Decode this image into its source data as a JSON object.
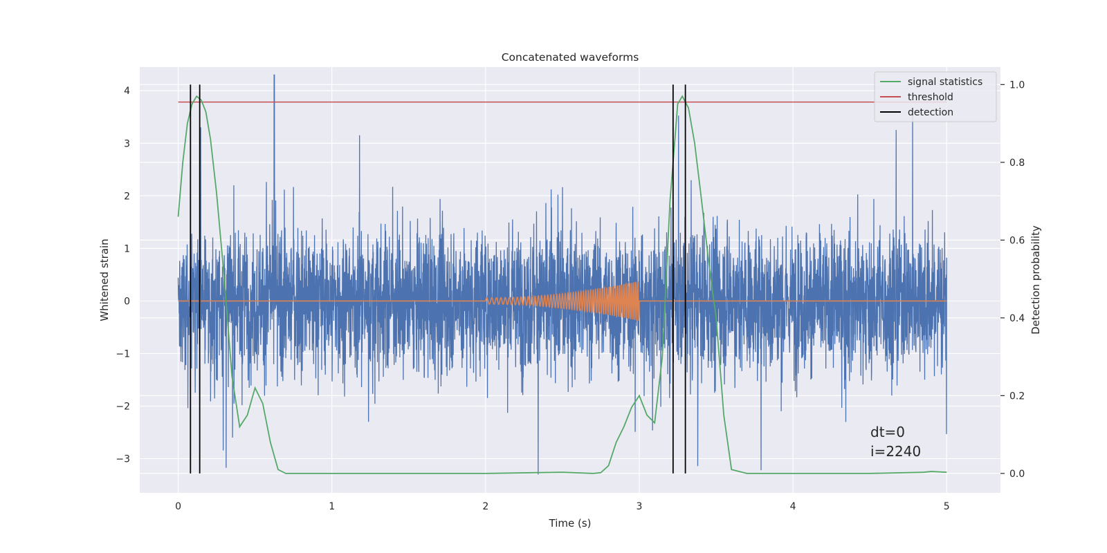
{
  "chart_data": {
    "type": "line",
    "title": "Concatenated waveforms",
    "xlabel": "Time (s)",
    "ylabel": "Whitened strain",
    "y2label": "Detection probability",
    "xlim": [
      -0.25,
      5.35
    ],
    "ylim": [
      -3.65,
      4.45
    ],
    "y2lim": [
      -0.05,
      1.045
    ],
    "x_ticks": [
      0,
      1,
      2,
      3,
      4,
      5
    ],
    "x_tick_labels": [
      "0",
      "1",
      "2",
      "3",
      "4",
      "5"
    ],
    "y_ticks": [
      4,
      3,
      2,
      1,
      0,
      -1,
      -2,
      -3
    ],
    "y_tick_labels": [
      "4",
      "3",
      "2",
      "1",
      "0",
      "−1",
      "−2",
      "−3"
    ],
    "y2_ticks": [
      1.0,
      0.8,
      0.6,
      0.4,
      0.2,
      0.0
    ],
    "y2_tick_labels": [
      "1.0",
      "0.8",
      "0.6",
      "0.4",
      "0.2",
      "0.0"
    ],
    "grid": true,
    "legend_position": "top-right",
    "colors": {
      "strain": "#4c72b0",
      "injected": "#dd8452",
      "signal_statistics": "#55a868",
      "threshold": "#c44e52",
      "detection": "#000000",
      "background": "#eaeaf2",
      "grid": "#ffffff"
    },
    "series": [
      {
        "name": "signal statistics",
        "axis": "right",
        "x": [
          0,
          0.03,
          0.06,
          0.09,
          0.12,
          0.15,
          0.18,
          0.21,
          0.25,
          0.3,
          0.35,
          0.4,
          0.45,
          0.5,
          0.55,
          0.6,
          0.65,
          0.7,
          1.0,
          2.0,
          2.5,
          2.7,
          2.75,
          2.8,
          2.85,
          2.9,
          2.95,
          3.0,
          3.05,
          3.1,
          3.15,
          3.2,
          3.25,
          3.28,
          3.32,
          3.36,
          3.4,
          3.45,
          3.5,
          3.55,
          3.6,
          3.7,
          4.0,
          4.5,
          4.85,
          4.9,
          4.95,
          5.0
        ],
        "y": [
          0.66,
          0.8,
          0.9,
          0.95,
          0.97,
          0.96,
          0.93,
          0.86,
          0.72,
          0.5,
          0.25,
          0.12,
          0.15,
          0.22,
          0.18,
          0.08,
          0.01,
          0.0,
          0.0,
          0.0,
          0.003,
          0.0,
          0.002,
          0.02,
          0.08,
          0.12,
          0.17,
          0.2,
          0.15,
          0.13,
          0.3,
          0.7,
          0.95,
          0.97,
          0.94,
          0.85,
          0.72,
          0.55,
          0.4,
          0.15,
          0.01,
          0.0,
          0.0,
          0.0,
          0.003,
          0.005,
          0.004,
          0.003
        ]
      },
      {
        "name": "threshold",
        "axis": "right",
        "x": [
          0,
          5
        ],
        "y": [
          0.955,
          0.955
        ]
      },
      {
        "name": "detection",
        "axis": "right",
        "x": [
          0.08,
          0.14,
          3.22,
          3.3
        ],
        "y_range": [
          0.0,
          1.0
        ]
      },
      {
        "name": "",
        "axis": "left",
        "description": "whitened strain noise",
        "x_range": [
          0,
          5
        ],
        "y_range": [
          -3.3,
          4.3
        ]
      },
      {
        "name": "",
        "axis": "left",
        "description": "injected waveform",
        "x_range": [
          0,
          5
        ],
        "chirp_range": [
          2.0,
          3.0
        ],
        "y_range": [
          -0.38,
          0.38
        ]
      }
    ],
    "legend": [
      {
        "label": "signal statistics",
        "color": "#55a868"
      },
      {
        "label": "threshold",
        "color": "#c44e52"
      },
      {
        "label": "detection",
        "color": "#000000"
      }
    ],
    "annotations": [
      "dt=0",
      "i=2240"
    ]
  }
}
